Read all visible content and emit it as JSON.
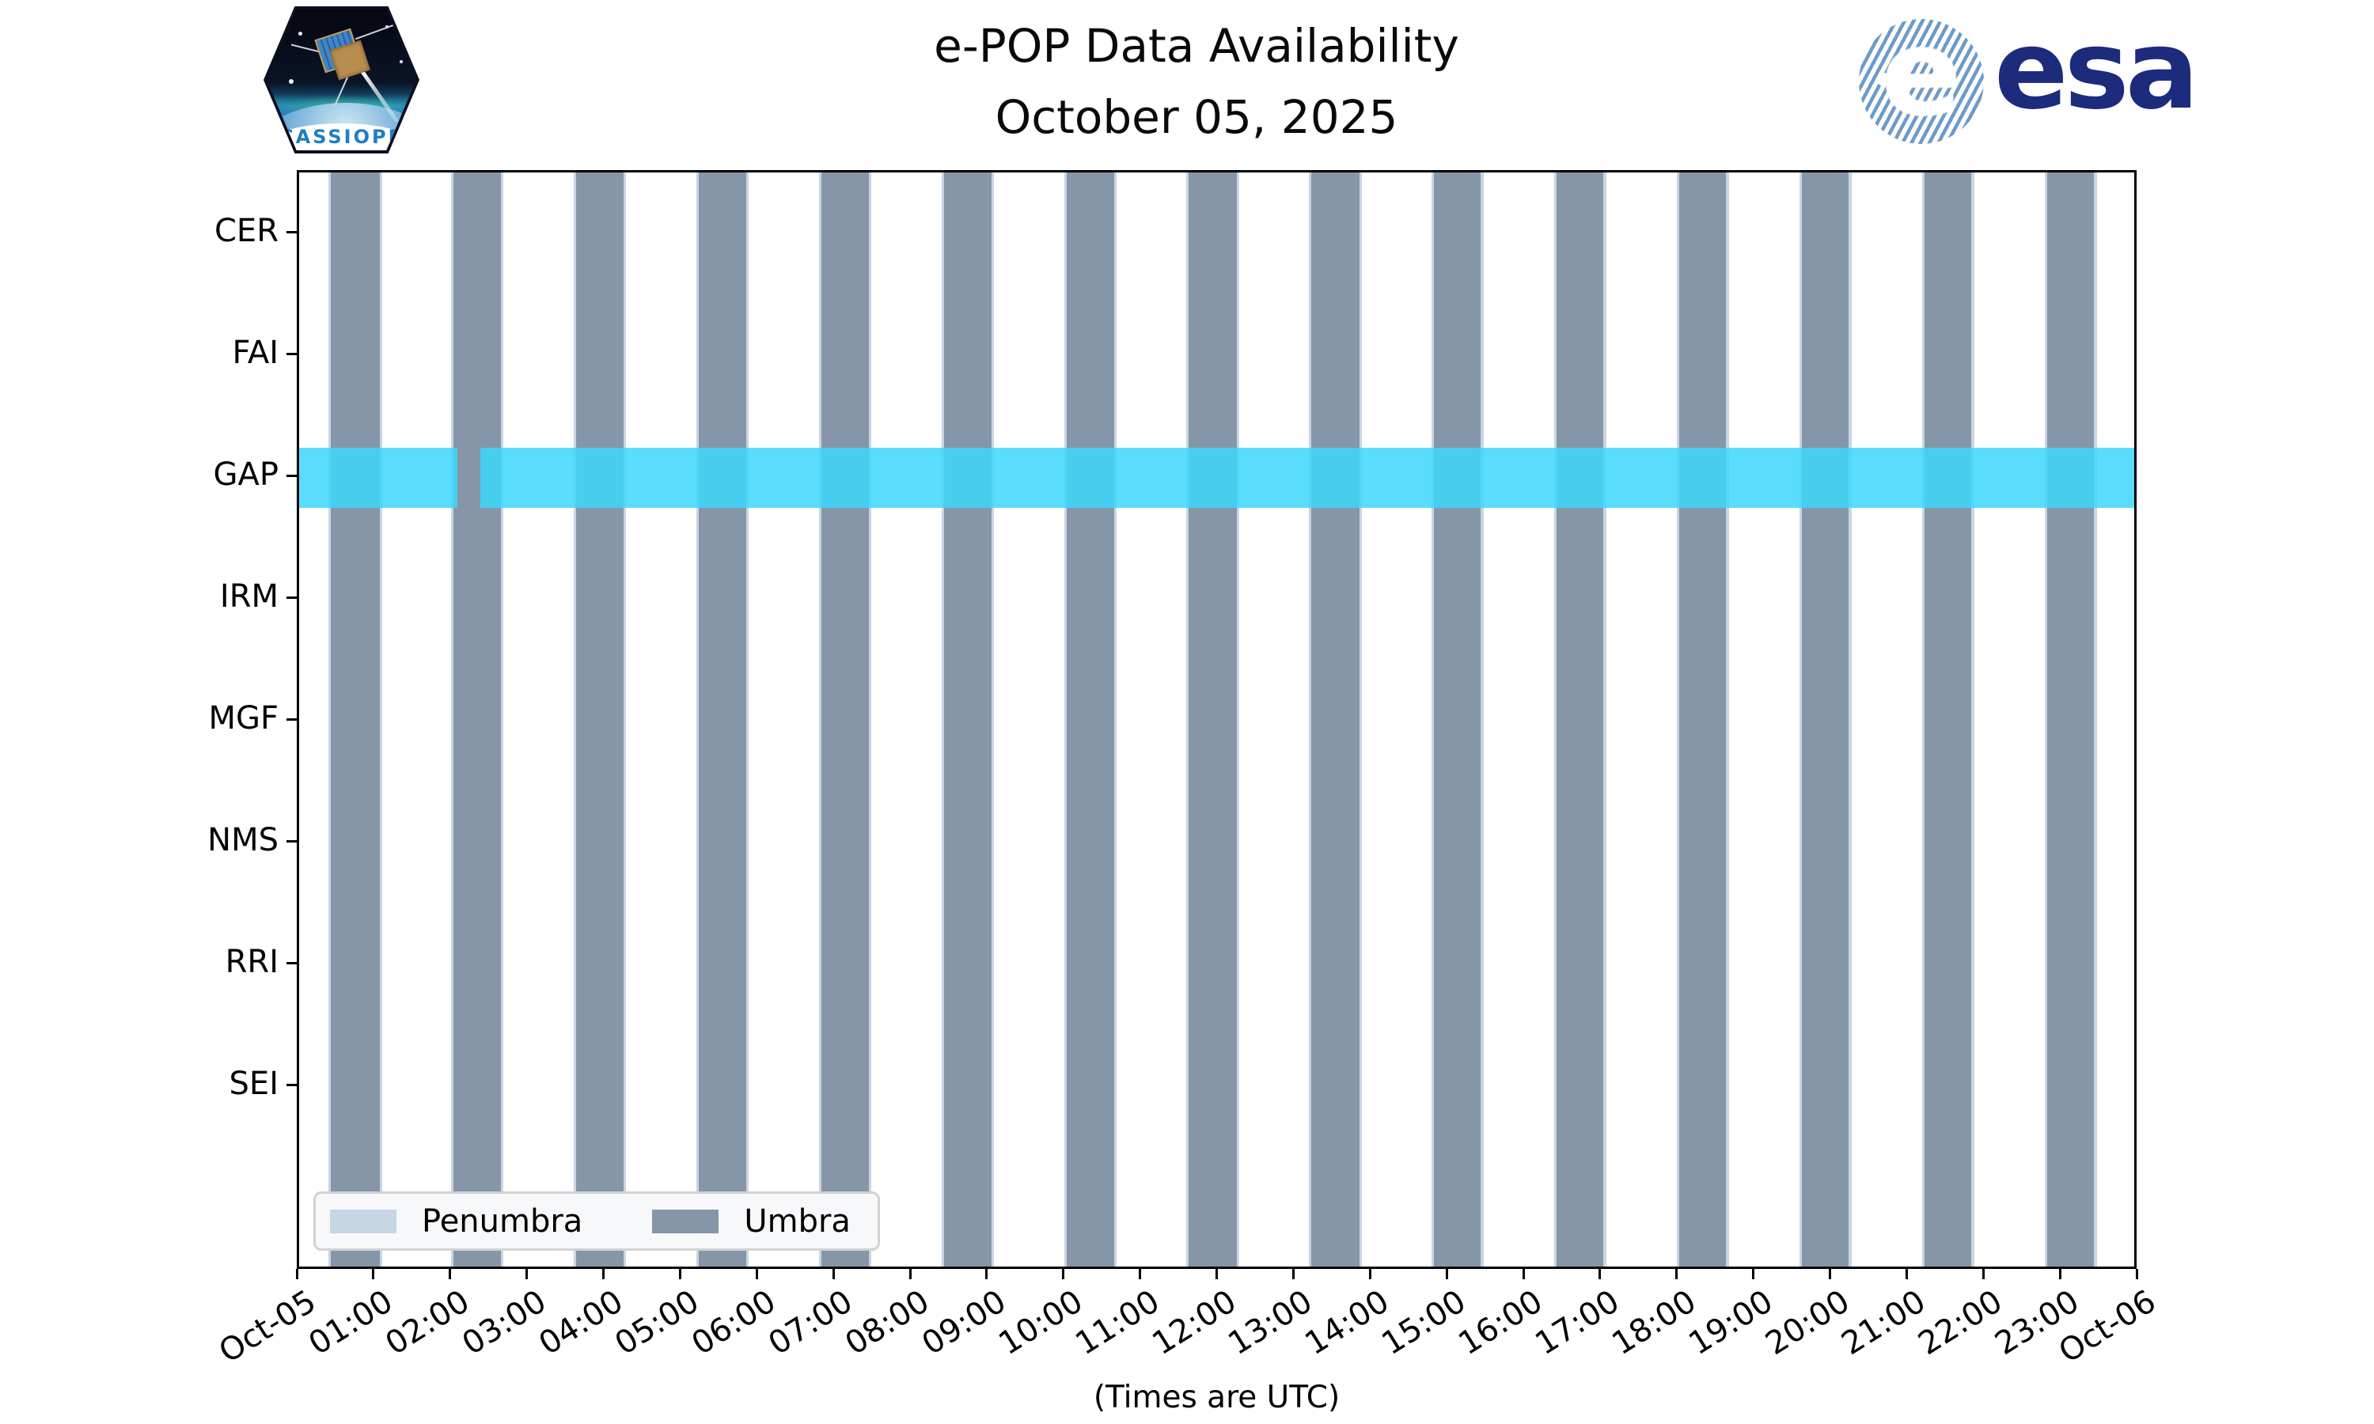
{
  "header": {
    "title_line1": "e-POP Data Availability",
    "title_line2": "October 05, 2025",
    "mission_patch_label": "CASSIOPE",
    "esa_logo_text": "esa",
    "esa_logo_e": "e"
  },
  "chart_data": {
    "type": "timeline-availability",
    "title": "e-POP Data Availability",
    "subtitle": "October 05, 2025",
    "xlabel": "(Times are UTC)",
    "x_axis": {
      "start": "Oct-05 00:00",
      "end": "Oct-06 00:00",
      "total_minutes": 1440,
      "tick_interval_minutes": 60,
      "tick_labels": [
        "Oct-05",
        "01:00",
        "02:00",
        "03:00",
        "04:00",
        "05:00",
        "06:00",
        "07:00",
        "08:00",
        "09:00",
        "10:00",
        "11:00",
        "12:00",
        "13:00",
        "14:00",
        "15:00",
        "16:00",
        "17:00",
        "18:00",
        "19:00",
        "20:00",
        "21:00",
        "22:00",
        "23:00",
        "Oct-06"
      ],
      "tick_label_rotation_deg": 32
    },
    "instruments": [
      "CER",
      "FAI",
      "GAP",
      "IRM",
      "MGF",
      "NMS",
      "RRI",
      "SEI"
    ],
    "umbra_minutes": [
      [
        25,
        63
      ],
      [
        121,
        158
      ],
      [
        217,
        254
      ],
      [
        313,
        350
      ],
      [
        409,
        446
      ],
      [
        505,
        542
      ],
      [
        601,
        638
      ],
      [
        696,
        734
      ],
      [
        792,
        830
      ],
      [
        888,
        925
      ],
      [
        984,
        1021
      ],
      [
        1080,
        1117
      ],
      [
        1176,
        1213
      ],
      [
        1272,
        1309
      ],
      [
        1368,
        1405
      ]
    ],
    "penumbra_margin_minutes": 2,
    "availability": [
      {
        "instrument": "GAP",
        "segments_minutes": [
          [
            0,
            124
          ],
          [
            142,
            1440
          ]
        ]
      }
    ],
    "legend": [
      {
        "label": "Penumbra",
        "color": "#c7d6e5"
      },
      {
        "label": "Umbra",
        "color": "#8596a9"
      }
    ],
    "legend_position": "lower-left",
    "grid": false,
    "colors": {
      "umbra": "#8596a9",
      "penumbra": "#c9d5e2",
      "availability": "rgba(60,215,250,0.85)",
      "axis": "#000000",
      "esa_blue": "#1c2b7c",
      "patch_text_blue": "#1f7ec2"
    }
  }
}
